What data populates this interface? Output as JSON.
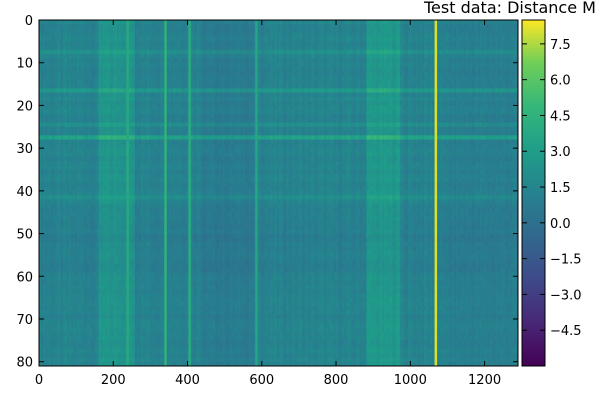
{
  "chart_data": {
    "type": "heatmap",
    "title": "Test data: Distance M",
    "xlabel": "",
    "ylabel": "",
    "x_range": [
      0,
      1290
    ],
    "y_range": [
      0,
      81
    ],
    "y_axis_inverted": true,
    "x_ticks": [
      0,
      200,
      400,
      600,
      800,
      1000,
      1200
    ],
    "y_ticks": [
      0,
      10,
      20,
      30,
      40,
      50,
      60,
      70,
      80
    ],
    "x_tick_labels": [
      "0",
      "200",
      "400",
      "600",
      "800",
      "1000",
      "1200"
    ],
    "y_tick_labels": [
      "0",
      "10",
      "20",
      "30",
      "40",
      "50",
      "60",
      "70",
      "80"
    ],
    "colormap": "viridis",
    "color_range": [
      -6.0,
      8.5
    ],
    "colorbar_ticks": [
      7.5,
      6.0,
      4.5,
      3.0,
      1.5,
      0.0,
      -1.5,
      -3.0,
      -4.5
    ],
    "colorbar_tick_labels": [
      "7.5",
      "6.0",
      "4.5",
      "3.0",
      "1.5",
      "0.0",
      "−1.5",
      "−3.0",
      "−4.5"
    ],
    "base_value": 1.3,
    "highlight_columns": [
      {
        "x": 1068,
        "value": 8.0
      },
      {
        "x": 340,
        "value": 4.5
      },
      {
        "x": 405,
        "value": 4.0
      },
      {
        "x": 238,
        "value": 3.8
      },
      {
        "x": 585,
        "value": 3.6
      }
    ],
    "brighter_column_bands": [
      {
        "x0": 160,
        "x1": 260,
        "value": 2.4
      },
      {
        "x0": 880,
        "x1": 975,
        "value": 2.6
      }
    ],
    "darker_column_bands": [
      {
        "x0": 440,
        "x1": 580,
        "value": 0.8
      },
      {
        "x0": 1090,
        "x1": 1290,
        "value": 1.0
      }
    ],
    "highlight_rows": [
      {
        "y": 27,
        "value": 3.8
      },
      {
        "y": 16,
        "value": 3.0
      },
      {
        "y": 7,
        "value": 2.4
      },
      {
        "y": 24,
        "value": 2.2
      },
      {
        "y": 41,
        "value": 2.2
      }
    ],
    "darker_row_bands": [
      {
        "y0": 44,
        "y1": 60,
        "value": 0.8
      }
    ]
  }
}
